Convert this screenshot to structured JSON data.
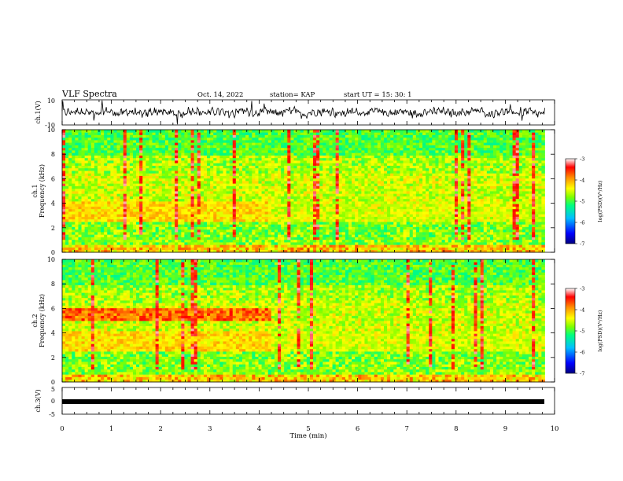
{
  "header": {
    "title": "VLF Spectra",
    "date": "Oct. 14, 2022",
    "station": "station= KAP",
    "start": "start  UT  =   15: 30: 1"
  },
  "chart_data": [
    {
      "type": "line",
      "panel": "waveform-ch1",
      "ylabel": "ch.1(V)",
      "ylim": [
        -10,
        10
      ],
      "yticks": [
        "10",
        "-10"
      ],
      "xlim": [
        0,
        10
      ],
      "series": [
        {
          "description_values": "noisy oscillation, mostly between -4 and 4 V, occasional spikes toward +/-8 V",
          "values": [
            0.4,
            1.8,
            -0.6,
            2.2,
            -1.4,
            0.9,
            -2.6,
            1.5,
            0.2,
            -3.1,
            2.8,
            -0.4,
            1.1,
            -2.0,
            3.0,
            -1.2,
            0.6,
            -0.8,
            2.4,
            -2.9,
            0.3,
            1.6,
            -1.7,
            0.8,
            -0.2,
            2.0,
            -1.0,
            1.3,
            -2.4,
            0.5,
            1.9,
            -0.7,
            0.2,
            2.6,
            -1.9,
            0.9,
            -0.3,
            1.5,
            -2.2,
            0.7
          ]
        }
      ]
    },
    {
      "type": "heatmap",
      "panel": "spectrogram-ch1",
      "ylabel": "ch.1\nFrequency (kHz)",
      "ylim": [
        0,
        10
      ],
      "yticks": [
        "0",
        "2",
        "4",
        "6",
        "8",
        "10"
      ],
      "xlim": [
        0,
        10
      ],
      "colorbar": {
        "label": "log(PSD)(V²/Hz)",
        "range": [
          -7,
          -3
        ],
        "ticks": [
          "-3",
          "-4",
          "-5",
          "-6",
          "-7"
        ]
      }
    },
    {
      "type": "heatmap",
      "panel": "spectrogram-ch2",
      "ylabel": "ch.2\nFrequency (kHz)",
      "ylim": [
        0,
        10
      ],
      "yticks": [
        "0",
        "2",
        "4",
        "6",
        "8",
        "10"
      ],
      "xlim": [
        0,
        10
      ],
      "colorbar": {
        "label": "log(PSD)(V²/Hz)",
        "range": [
          -7,
          -3
        ],
        "ticks": [
          "-3",
          "-4",
          "-5",
          "-6",
          "-7"
        ]
      }
    },
    {
      "type": "line",
      "panel": "waveform-ch3",
      "ylabel": "ch.3(V)",
      "ylim": [
        -5,
        5
      ],
      "yticks": [
        "5",
        "0",
        "-5"
      ],
      "xlim": [
        0,
        10
      ],
      "series": [
        {
          "values": [
            -0.4,
            -0.4
          ]
        }
      ]
    }
  ],
  "x_axis": {
    "label": "Time  (min)",
    "ticks": [
      "0",
      "1",
      "2",
      "3",
      "4",
      "5",
      "6",
      "7",
      "8",
      "9",
      "10"
    ]
  },
  "colors": {
    "scale": [
      "#00007f",
      "#0000ff",
      "#00bfff",
      "#00ff7f",
      "#7fff00",
      "#ffff00",
      "#ff8c00",
      "#ff0000",
      "#ffffff"
    ]
  }
}
